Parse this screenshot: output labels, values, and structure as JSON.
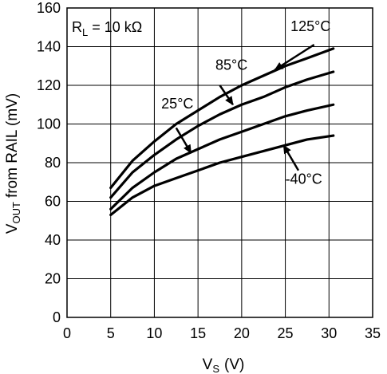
{
  "chart_data": {
    "type": "line",
    "title": "",
    "xlabel": "V",
    "xlabel_sub": "S",
    "xlabel_unit": "(V)",
    "ylabel": "V",
    "ylabel_sub": "OUT",
    "ylabel_rest": "from RAIL (mV)",
    "xlim": [
      0,
      35
    ],
    "ylim": [
      0,
      160
    ],
    "xticks": [
      0,
      5,
      10,
      15,
      20,
      25,
      30,
      35
    ],
    "yticks": [
      0,
      20,
      40,
      60,
      80,
      100,
      120,
      140,
      160
    ],
    "grid": true,
    "condition_label": "R",
    "condition_sub": "L",
    "condition_value": "= 10 kΩ",
    "series": [
      {
        "name": "125°C",
        "x": [
          5,
          7.5,
          10,
          12.5,
          15,
          17.5,
          20,
          22.5,
          25,
          27.5,
          30.5
        ],
        "y": [
          67,
          81,
          91,
          100,
          107,
          114,
          120,
          125,
          130,
          134,
          139
        ]
      },
      {
        "name": "85°C",
        "x": [
          5,
          7.5,
          10,
          12.5,
          15,
          17.5,
          20,
          22.5,
          25,
          27.5,
          30.5
        ],
        "y": [
          62,
          75,
          84,
          92,
          99,
          105,
          110,
          114,
          119,
          123,
          127
        ]
      },
      {
        "name": "25°C",
        "x": [
          5,
          7.5,
          10,
          12.5,
          15,
          17.5,
          20,
          22.5,
          25,
          27.5,
          30.5
        ],
        "y": [
          56,
          67,
          75,
          82,
          87,
          92,
          96,
          100,
          104,
          107,
          110
        ]
      },
      {
        "name": "-40°C",
        "x": [
          5,
          7.5,
          10,
          12.5,
          15,
          17.5,
          20,
          22.5,
          25,
          27.5,
          30.5
        ],
        "y": [
          53,
          62,
          68,
          72,
          76,
          80,
          83,
          86,
          89,
          92,
          94
        ]
      }
    ],
    "annotations": [
      {
        "series": "125°C",
        "label_x": 25.6,
        "label_y": 148,
        "arrow_from": [
          28.3,
          141
        ],
        "arrow_to": [
          23.8,
          128
        ]
      },
      {
        "series": "85°C",
        "label_x": 17,
        "label_y": 128,
        "arrow_from": [
          17.5,
          120
        ],
        "arrow_to": [
          19,
          110
        ]
      },
      {
        "series": "25°C",
        "label_x": 10.8,
        "label_y": 108,
        "arrow_from": [
          12.5,
          98
        ],
        "arrow_to": [
          14.2,
          85
        ]
      },
      {
        "series": "-40°C",
        "label_x": 25,
        "label_y": 69,
        "arrow_from": [
          26.5,
          76
        ],
        "arrow_to": [
          24.8,
          89
        ]
      }
    ]
  }
}
